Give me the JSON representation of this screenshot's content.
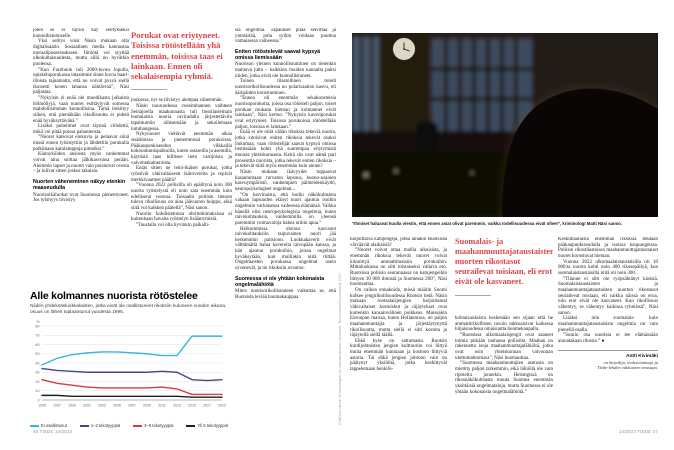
{
  "meta": {
    "footer_left": "46  TIEDE  14/2023",
    "footer_right": "14/2023  TIEDE  47",
    "quote_color": "#dc4347"
  },
  "article": {
    "left": {
      "col1": [
        {
          "k": "p",
          "t": "joten se ei täysin käy selitykseksi kunnollistumiselle."
        },
        {
          "k": "p",
          "t": "Yksi selitys voisi Näsin mukaan olla digitalisaatio. Sosiaalinen media kannustaa moraaliposeeraukseen. Ilmiötä voi syyttää ulkokultaisuudesta, mutta sillä on hyvätkin puolensa."
        },
        {
          "k": "p",
          "t": "”Kun Facebook tuli 2000-luvun lopulla, opiskeluporukassa latasimme sinne kuvia baari-illoista tajuamatta, että ne voivat pysyä siellä ikuisesti kenen tahansa nähtävinä”, Näsi paljastaa."
        },
        {
          "k": "p",
          "t": "”Nykyisin ei enää ole muodikasta julkaista hölmöilyjä, vaan nuoret esittäytyvät somessa mahdollisimman kunnollisina. Tämä linkittyy siihen, että pientäkään rikollisuutta ei pidetä enää hyväksyttävänä.”"
        },
        {
          "k": "p",
          "t": "Lisäksi puhelimet ovat täynnä viihdettä, mikä voi pitää poissa pahanteosta."
        },
        {
          "k": "p",
          "t": "”Nuoret katsovat elokuvia ja pelaavat siinä missä ennen tylsistyttiin ja lähdettiin porukalla potkimaan katulamppuja pimeiksi.”"
        },
        {
          "k": "p",
          "t": "Kännyköiden ansiosta myös vanhemmat voivat aina soittaa jälkikasvunsa perään. Aiemmin lapset ja nuoret vain poistuivat ovesta – ja tulivat sitten joskus takaisin."
        },
        {
          "k": "sub",
          "t": "Nuorten väheneminen näkyy etenkin maaseudulla"
        },
        {
          "k": "p",
          "t": "Nuorisoikäluokat ovat Suomessa pienentyneet. Jos tyhmyys tiivistyy"
        }
      ],
      "col2": {
        "pullquote": "Porukat ovat eriytyneet. Toisissa rötöstellään yhä enemmän, toisissa taas ei lainkaan. Ennen oli sekalaisempia ryhmiä.",
        "paragraphs": [
          {
            "k": "p",
            "t": "joukossa, nyt se tiivistyy aiempaa vähemmän."
          },
          {
            "k": "p",
            "t": "Näsin nuoruudessa vuosituhannen vaihteen Seinäjoella maakunnasta tuli bussilasteittain humalaisia nuoria raviradalla järjestettäviin tapahtumiin rähisemään ja sekoilemaan lumihangessa."
          },
          {
            "k": "p",
            "t": "Nykynuoret viettävät enemmän aikaa sisätiloissa ja pienemmissä porukoissa. Pääkaupunkiseudun vilkkailla kokoontumispaikoilla, kuten ostareilla ja asemilla, käytöstä taas hillitsee tieto vartijoista ja valvontakameroista."
          },
          {
            "k": "p",
            "t": "Entäs sitten ne teini-ikäiset porukat, jotka ryöstivät väkivaltaisesti ikätovereita ja repivät merkkivaatteet päältä?"
          },
          {
            "k": "p",
            "t": "”Vuonna 2022 poliisilla oli epäiltynä noin 300 nuorta ryöstelystä eli noin sata enemmän kuin edellisenä vuonna. Toisaalta poliisin tietoon tuleva rikollisuus on aina jäävuoren huippu, eikä siitä voi kaikkea päätellä”, Näsi sanoo."
          },
          {
            "k": "p",
            "t": "Nuoriin kohdistetuissa uhritutkimuksissa ei kuitenkaan havaita ryöstelyn lisääntymistä."
          },
          {
            "k": "p",
            "t": "”Taustalla voi olla hyvinkin paikalli-"
          }
        ]
      },
      "col3": [
        {
          "k": "p",
          "t": "sia ongelmia. Tapaukset pitää selvittää ja ymmärtää, jotta syihin voidaan puuttua varhaisessa vaiheessa.”"
        },
        {
          "k": "sub",
          "t": "Eniten rötöstelevät saavat kypsyä omissa liemissään"
        },
        {
          "k": "p",
          "t": "Nuorison yleinen kunnollistuminen on tietenkin mahtava juttu – kaikkien muiden kannalta paitsi niiden, jotka eivät ole kunnollistuneet."
        },
        {
          "k": "p",
          "t": "Toinen tilastollinen trendi nuorisorikollisuudessa on polarisaation kasvu, eli ääripäiden korostuminen."
        },
        {
          "k": "p",
          "t": "”Ennen oli enemmän sekakoosteisia nuorisoporukoita, joissa osa rötösteli paljon, toiset porukan mukana hieman ja kolmannet eivät lainkaan”, Näsi kertoo. ”Nykyisin kaveriporukat ovat eriytyneet. Toisissa porukoissa rötöstellään paljon, toisissa ei lainkaan.”"
        },
        {
          "k": "p",
          "t": "Enää ei ole niitä vähän rikoksia tekeviä nuoria, jotka sitoisivat eniten rikoksia tekevät osaksi liukumaa, vaan rötöstelijät saavat kypsyä omissa liemissään kohti yhä suurempaa eriytymistä muusta yhteiskunnasta. Keitä siis ovat nämä pari prosenttia nuorista, jotka tekevät eniten rikoksia – ja tekevät niitä myös enemmän kuin ennen?"
        },
        {
          "k": "p",
          "t": "Näsin mukaan ikävyydet tuppaavat kasautumaan: turvaton lapsuus, huono-osainen kasvuympäristö, vanhempien päihteidenkäyttö, neuropsykologiset ongelmat..."
        },
        {
          "k": "p",
          "t": "”On harvinaista, että kodin näkökulmasta vakaan lapsuuden elänyt nuori ajautuu isoihin ongelmiin varhaisessa vaiheessa elämänsä. Vaikka hänellä olisi neuropsykologisia ongelmia, kuten raivokohtauksia, vanhemmilla on yleensä paremmin voimavaroja hakea niihin apua.”"
        },
        {
          "k": "p",
          "t": "Heikommissa oloissa kasvanut raivokohtauksiin taipuvainen nuori jää herkemmin paitsioon. Luokkakaverit eivät välttämättä halua kavereita raivopään kanssa, ja hän ajautuu porukoihin, joissa ongelmat hyväksytään, kun muillakin niitä riittää. Ongelmaisten porukassa ongelmat usein syvenevät, ja tie rikoksiin avautuu."
        },
        {
          "k": "sub",
          "t": "Suomessa ei ole yhtään kokonaista ongelmalähiötä"
        },
        {
          "k": "p",
          "t": "Miten nuorisorikollisuuteen vaikuttaa se, että Ruotsista leviää huumekauppaa"
        }
      ],
      "chart_credit_vertical": "Grafiikan lähde: Kriminologian ja oikeuspolitiikan instituutti, Nuorisorikollisuuskysely 2020"
    },
    "right": {
      "photo_caption": "”Ihmiset haluavat kuulla viestin, että ennen asiat olivat paremmin, vaikka todellisuudessa eivät olleet”, kriminologi Matti Näsi sanoo.",
      "col1": [
        {
          "k": "p",
          "t": "harjoittavia katujengejä, jotka ainakin Ruotsissa värväävät alaikäisiä?"
        },
        {
          "k": "p",
          "t": "”Nuoret voivat ottaa mallia aikuisista, ja enemmän rikoksia tekevät nuoret voivat kiinnittyä ammattimaisiin porukoihin. Mittaluokassa on silti toistaiseksi valtava ero. Ruotsissa poliisin seurannassa on katujengeihin liittyen 30 000 ihmistä ja Suomessa 200”, Näsi huomauttaa."
        },
        {
          "k": "p",
          "t": "On vaikea ennakoida, missä määrin Suomi kulkee jengirikollisuudessa Ruotsin tietä. Näsin mukaan ruotsalaisjengien harjoittamat väkivaltaiset kostoiskut ja räjäytykset ovat kuitenkin kansainvälinen poikkeus. Muissakin Euroopan maissa, kuten Hollannissa, on paljon maahanmuuttajia ja järjestäytynyttä rikollisuutta, mutta siellä ei silti kostota ja räjäytellä siellä täällä."
        },
        {
          "k": "p",
          "t": "Ehkä kyse on sattumasta. Ruotsin kurdijohtoisten jengien kulttuuriin voi liittyä muita enemmän kunniaan ja kostoon liittyviä asioita. Tai ehkä jengien johtoon vain on päätynyt yksilöitä, jotka keskittyvät tappelemaan henkilö-"
        }
      ],
      "col2": {
        "pullquote": "Suomalais- ja maahanmuuttajataustaisten nuorten rikostasot seurailevat toisiaan, eli erot eivät ole kasvaneet.",
        "paragraphs": [
          {
            "k": "p",
            "t": "kohtaisuuksista keskenään sen sijaan että he ammattirikollisten tavoin tahkoaisivat kaikessa hiljaisuudessa omaisuutta huumekaupalla."
          },
          {
            "k": "p",
            "t": "”Ruotsissa ulkomaalaisjengit ovat saaneet toimia pitkään rauhassa poliisilta. Maahan on rakennettu isoja maahanmuuttajalähiöitä, jotka ovat osin yhteiskunnan valvonnan ulottumattomissa”, Näsi huomauttaa."
          },
          {
            "k": "p",
            "t": "”Suomessa maahanmuuttajien asutusta on mietitty paljon tarkemmin, eikä lähiöitä ole vain ripoteltu jonnekin. Helsingissä on rikosnäkökulmasta muuta Suomea enemmän yksittäisiä ongelmataloja, mutta Suomessa ei ole yhtään kokonaista ongelmalähiötä.”"
          }
        ]
      },
      "col3": [
        {
          "k": "p",
          "t": "Keskimääräistä enemmän rikoksia tehdään pääkaupunkiseudulla ja isoissa kaupungeissa. Poliisin rikostilastoissa maahanmuuttajataustaiset nuoret korostuvat hieman."
        },
        {
          "k": "p",
          "t": "Vuonna 2022 ulkomaalaistaustaisilla oli 10 000:ta nuorta kohti noin 400 rikosepäilyä, kun suomalaistaustaisilla niitä oli noin 300."
        },
        {
          "k": "p",
          "t": "”Tilanne ei silti ole ryöpsähtänyt käsistä. Suomalaistaustaisten ja maahanmuuttajataustaisten nuorten rikostasot seurailevat toisiaan, eli vaikka näissä on eroa, niin erot eivät ole kasvaneet. Kun rikollisuus vähentyy, se vähentyy kaikissa ryhmissä”, Näsi sanoo."
        },
        {
          "k": "p",
          "t": "Lisäksi niin suomalais- kuin maahanmuuttajataustaisista ongelmia on vain pienellä osalla."
        },
        {
          "k": "p",
          "t": "”Suurin osa nuorista ei tee elämässään ainoatakaan rikosta.” ●"
        }
      ],
      "author": {
        "name": "Antti Kivimäki",
        "bio1": "on kirjailija, tiedetoimittaja ja",
        "bio2": "Tiede-lehden vakituinen avustaja."
      }
    }
  },
  "chart_data": {
    "type": "line",
    "title": "Alle kolmannes nuorista rötöstelee",
    "subtitle": "Niiden yhdeksäsluokkalaisten, jotka eivät ole osallistuneet rikoksiin kuluneen vuoden aikana, osuus on lähes tuplaantunut vuodesta 1995.",
    "ylabel": "%",
    "ylim": [
      0,
      80
    ],
    "ytick_step": 10,
    "grid": true,
    "legend_position": "bottom",
    "x": [
      1995,
      1997,
      1999,
      2001,
      2003,
      2005,
      2007,
      2009,
      2011,
      2013,
      2015,
      2017,
      2019
    ],
    "series": [
      {
        "name": "Ei osallistunut",
        "color": "#35b4e5",
        "values": [
          38,
          45,
          49,
          51,
          52,
          52,
          51,
          50,
          48,
          48,
          69,
          69,
          69
        ]
      },
      {
        "name": "1–2 tekotyyppiä",
        "color": "#46488f",
        "values": [
          34,
          32,
          31,
          30,
          30,
          30,
          30,
          30,
          31,
          30,
          22,
          21,
          22
        ]
      },
      {
        "name": "3–5 tekotyyppiä",
        "color": "#d63c41",
        "values": [
          22,
          18,
          16,
          14,
          13,
          13,
          13,
          13,
          14,
          12,
          6,
          6,
          6
        ]
      },
      {
        "name": "Yli 5 tekotyyppiä",
        "color": "#1f1f1f",
        "values": [
          5,
          5,
          4,
          4,
          4,
          4,
          4,
          4,
          4,
          4,
          3,
          3,
          3
        ]
      }
    ]
  }
}
